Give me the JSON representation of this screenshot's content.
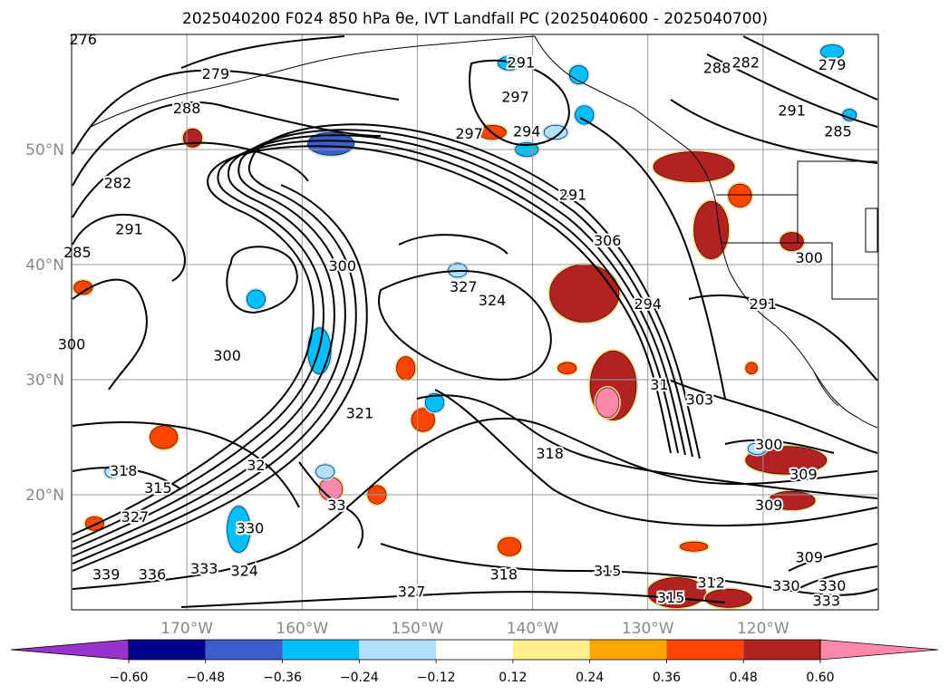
{
  "chart_data": {
    "type": "heatmap",
    "title": "2025040200 F024 850 hPa θe, IVT Landfall PC (2025040600 - 2025040700)",
    "lon_range": [
      -180,
      -110
    ],
    "lat_range": [
      10,
      60
    ],
    "x_ticks": [
      {
        "value": -170,
        "label": "170°W"
      },
      {
        "value": -160,
        "label": "160°W"
      },
      {
        "value": -150,
        "label": "150°W"
      },
      {
        "value": -140,
        "label": "140°W"
      },
      {
        "value": -130,
        "label": "130°W"
      },
      {
        "value": -120,
        "label": "120°W"
      }
    ],
    "y_ticks": [
      {
        "value": 20,
        "label": "20°N"
      },
      {
        "value": 30,
        "label": "30°N"
      },
      {
        "value": 40,
        "label": "40°N"
      },
      {
        "value": 50,
        "label": "50°N"
      }
    ],
    "grid": true,
    "colorbar": {
      "placement": "bottom",
      "extend": "both",
      "levels": [
        -0.72,
        -0.6,
        -0.48,
        -0.36,
        -0.24,
        -0.12,
        0.12,
        0.24,
        0.36,
        0.48,
        0.6,
        0.72
      ],
      "colors": [
        "#9a32cd",
        "#00008b",
        "#3a5fcd",
        "#00bfff",
        "#b0e2ff",
        "#ffffff",
        "#fff08f",
        "#ffa500",
        "#ff4500",
        "#b22222",
        "#ff88aa"
      ],
      "tick_labels": [
        "−0.60",
        "−0.48",
        "−0.36",
        "−0.24",
        "−0.12",
        "0.12",
        "0.24",
        "0.36",
        "0.48",
        "0.60"
      ]
    },
    "contour_labels": [
      {
        "lon": -179.0,
        "lat": 59.5,
        "text": "276"
      },
      {
        "lon": -167.5,
        "lat": 56.5,
        "text": "279"
      },
      {
        "lon": -170.0,
        "lat": 53.5,
        "text": "288"
      },
      {
        "lon": -176.0,
        "lat": 47.0,
        "text": "282"
      },
      {
        "lon": -179.5,
        "lat": 41.0,
        "text": "285"
      },
      {
        "lon": -175.0,
        "lat": 43.0,
        "text": "291"
      },
      {
        "lon": -180.0,
        "lat": 33.0,
        "text": "300"
      },
      {
        "lon": -156.5,
        "lat": 39.8,
        "text": "300"
      },
      {
        "lon": -166.5,
        "lat": 32.0,
        "text": "300"
      },
      {
        "lon": -146.0,
        "lat": 38.0,
        "text": "327"
      },
      {
        "lon": -143.5,
        "lat": 36.8,
        "text": "324"
      },
      {
        "lon": -145.5,
        "lat": 51.3,
        "text": "297"
      },
      {
        "lon": -140.5,
        "lat": 51.5,
        "text": "294"
      },
      {
        "lon": -136.5,
        "lat": 46.0,
        "text": "291"
      },
      {
        "lon": -133.5,
        "lat": 42.0,
        "text": "306"
      },
      {
        "lon": -130.0,
        "lat": 36.5,
        "text": "294"
      },
      {
        "lon": -129.0,
        "lat": 29.5,
        "text": "31"
      },
      {
        "lon": -125.5,
        "lat": 28.2,
        "text": "303"
      },
      {
        "lon": -138.5,
        "lat": 23.5,
        "text": "318"
      },
      {
        "lon": -120.0,
        "lat": 36.5,
        "text": "291"
      },
      {
        "lon": -116.0,
        "lat": 40.5,
        "text": "300"
      },
      {
        "lon": -121.5,
        "lat": 57.5,
        "text": "282"
      },
      {
        "lon": -124.0,
        "lat": 57.0,
        "text": "288"
      },
      {
        "lon": -114.0,
        "lat": 57.3,
        "text": "279"
      },
      {
        "lon": -117.5,
        "lat": 53.3,
        "text": "291"
      },
      {
        "lon": -113.5,
        "lat": 51.5,
        "text": "285"
      },
      {
        "lon": -141.0,
        "lat": 57.5,
        "text": "291"
      },
      {
        "lon": -141.5,
        "lat": 54.5,
        "text": "297"
      },
      {
        "lon": -119.5,
        "lat": 24.3,
        "text": "300"
      },
      {
        "lon": -116.5,
        "lat": 21.7,
        "text": "309"
      },
      {
        "lon": -119.5,
        "lat": 19.0,
        "text": "309"
      },
      {
        "lon": -175.5,
        "lat": 22.0,
        "text": "318"
      },
      {
        "lon": -172.5,
        "lat": 20.5,
        "text": "315"
      },
      {
        "lon": -174.5,
        "lat": 18.0,
        "text": "327"
      },
      {
        "lon": -177.0,
        "lat": 13.0,
        "text": "339"
      },
      {
        "lon": -173.0,
        "lat": 13.0,
        "text": "336"
      },
      {
        "lon": -168.5,
        "lat": 13.5,
        "text": "333"
      },
      {
        "lon": -165.0,
        "lat": 13.3,
        "text": "324"
      },
      {
        "lon": -150.5,
        "lat": 11.5,
        "text": "327"
      },
      {
        "lon": -142.5,
        "lat": 13.0,
        "text": "318"
      },
      {
        "lon": -133.5,
        "lat": 13.3,
        "text": "315"
      },
      {
        "lon": -128.0,
        "lat": 11.0,
        "text": "315"
      },
      {
        "lon": -124.5,
        "lat": 12.3,
        "text": "312"
      },
      {
        "lon": -116.0,
        "lat": 14.5,
        "text": "309"
      },
      {
        "lon": -118.0,
        "lat": 12.0,
        "text": "330"
      },
      {
        "lon": -114.0,
        "lat": 12.0,
        "text": "330"
      },
      {
        "lon": -114.5,
        "lat": 10.7,
        "text": "333"
      },
      {
        "lon": -155.0,
        "lat": 27.0,
        "text": "321"
      },
      {
        "lon": -157.0,
        "lat": 19.0,
        "text": "33"
      },
      {
        "lon": -164.0,
        "lat": 22.5,
        "text": "32"
      },
      {
        "lon": -164.5,
        "lat": 17.0,
        "text": "330"
      }
    ],
    "shaded_regions": [
      {
        "lon": -133.0,
        "lat": 29.5,
        "rx": 2.0,
        "ry": 3.0,
        "level": 0.48
      },
      {
        "lon": -133.5,
        "lat": 28.0,
        "rx": 1.0,
        "ry": 1.3,
        "level": 0.6
      },
      {
        "lon": -135.5,
        "lat": 37.5,
        "rx": 3.0,
        "ry": 2.5,
        "level": 0.48
      },
      {
        "lon": -126.0,
        "lat": 48.5,
        "rx": 3.5,
        "ry": 1.3,
        "level": 0.48
      },
      {
        "lon": -124.5,
        "lat": 43.0,
        "rx": 1.5,
        "ry": 2.5,
        "level": 0.48
      },
      {
        "lon": -118.0,
        "lat": 23.0,
        "rx": 3.5,
        "ry": 1.2,
        "level": 0.48
      },
      {
        "lon": -117.5,
        "lat": 19.5,
        "rx": 2.0,
        "ry": 0.8,
        "level": 0.48
      },
      {
        "lon": -127.5,
        "lat": 11.5,
        "rx": 2.5,
        "ry": 1.3,
        "level": 0.48
      },
      {
        "lon": -123.0,
        "lat": 11.0,
        "rx": 2.0,
        "ry": 0.8,
        "level": 0.48
      },
      {
        "lon": -142.0,
        "lat": 15.5,
        "rx": 1.0,
        "ry": 0.8,
        "level": 0.36
      },
      {
        "lon": -149.5,
        "lat": 26.5,
        "rx": 1.0,
        "ry": 1.0,
        "level": 0.36
      },
      {
        "lon": -153.5,
        "lat": 20.0,
        "rx": 0.8,
        "ry": 0.8,
        "level": 0.36
      },
      {
        "lon": -172.0,
        "lat": 25.0,
        "rx": 1.2,
        "ry": 1.0,
        "level": 0.36
      },
      {
        "lon": -178.0,
        "lat": 17.5,
        "rx": 0.8,
        "ry": 0.6,
        "level": 0.36
      },
      {
        "lon": -179.0,
        "lat": 38.0,
        "rx": 0.8,
        "ry": 0.6,
        "level": 0.36
      },
      {
        "lon": -169.5,
        "lat": 51.0,
        "rx": 0.8,
        "ry": 0.8,
        "level": 0.48
      },
      {
        "lon": -151.0,
        "lat": 31.0,
        "rx": 0.8,
        "ry": 1.0,
        "level": 0.36
      },
      {
        "lon": -137.0,
        "lat": 31.0,
        "rx": 0.8,
        "ry": 0.5,
        "level": 0.36
      },
      {
        "lon": -143.5,
        "lat": 51.5,
        "rx": 1.2,
        "ry": 0.6,
        "level": 0.36
      },
      {
        "lon": -122.0,
        "lat": 46.0,
        "rx": 1.0,
        "ry": 1.0,
        "level": 0.36
      },
      {
        "lon": -117.5,
        "lat": 42.0,
        "rx": 1.0,
        "ry": 0.8,
        "level": 0.48
      },
      {
        "lon": -126.0,
        "lat": 15.5,
        "rx": 1.2,
        "ry": 0.4,
        "level": 0.36
      },
      {
        "lon": -121.0,
        "lat": 31.0,
        "rx": 0.5,
        "ry": 0.5,
        "level": 0.36
      },
      {
        "lon": -157.5,
        "lat": 20.5,
        "rx": 1.0,
        "ry": 1.0,
        "level": 0.6
      },
      {
        "lon": -157.5,
        "lat": 50.5,
        "rx": 2.0,
        "ry": 1.0,
        "level": -0.48
      },
      {
        "lon": -140.5,
        "lat": 50.0,
        "rx": 1.0,
        "ry": 0.6,
        "level": -0.36
      },
      {
        "lon": -135.5,
        "lat": 53.0,
        "rx": 0.8,
        "ry": 0.8,
        "level": -0.36
      },
      {
        "lon": -136.0,
        "lat": 56.5,
        "rx": 0.8,
        "ry": 0.8,
        "level": -0.36
      },
      {
        "lon": -138.0,
        "lat": 51.5,
        "rx": 1.0,
        "ry": 0.6,
        "level": -0.24
      },
      {
        "lon": -158.5,
        "lat": 32.5,
        "rx": 1.0,
        "ry": 2.0,
        "level": -0.36
      },
      {
        "lon": -165.5,
        "lat": 17.0,
        "rx": 1.0,
        "ry": 2.0,
        "level": -0.36
      },
      {
        "lon": -164.0,
        "lat": 37.0,
        "rx": 0.8,
        "ry": 0.8,
        "level": -0.36
      },
      {
        "lon": -158.0,
        "lat": 22.0,
        "rx": 0.8,
        "ry": 0.6,
        "level": -0.24
      },
      {
        "lon": -148.5,
        "lat": 28.0,
        "rx": 0.8,
        "ry": 0.8,
        "level": -0.36
      },
      {
        "lon": -142.0,
        "lat": 57.5,
        "rx": 1.0,
        "ry": 0.6,
        "level": -0.36
      },
      {
        "lon": -114.0,
        "lat": 58.5,
        "rx": 1.0,
        "ry": 0.6,
        "level": -0.36
      },
      {
        "lon": -120.5,
        "lat": 24.0,
        "rx": 0.8,
        "ry": 0.5,
        "level": -0.24
      },
      {
        "lon": -112.5,
        "lat": 53.0,
        "rx": 0.6,
        "ry": 0.5,
        "level": -0.36
      },
      {
        "lon": -146.5,
        "lat": 39.5,
        "rx": 0.8,
        "ry": 0.6,
        "level": -0.24
      },
      {
        "lon": -176.5,
        "lat": 22.0,
        "rx": 0.6,
        "ry": 0.5,
        "level": -0.24
      }
    ]
  }
}
